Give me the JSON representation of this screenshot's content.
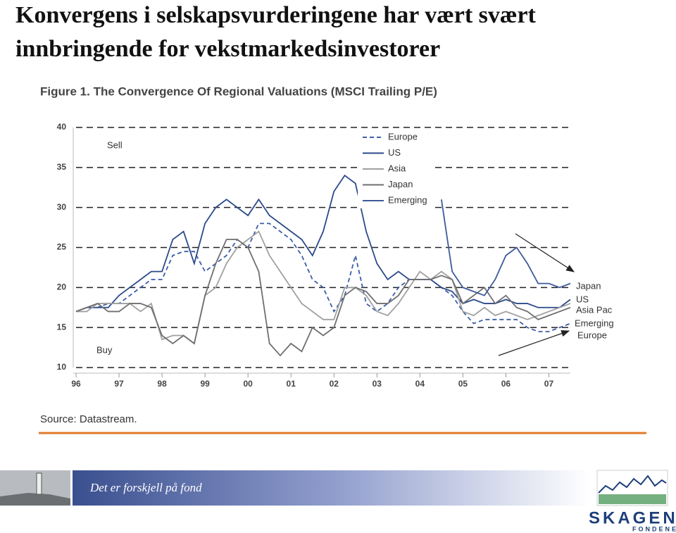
{
  "slide_title": [
    "Konvergens i selskapsvurderingene har vært svært",
    "innbringende for vekstmarkedsinvestorer"
  ],
  "chart_data": {
    "type": "line",
    "title": "Figure 1. The Convergence Of Regional Valuations (MSCI Trailing P/E)",
    "source": "Source: Datastream.",
    "x": [
      1996,
      1996.25,
      1996.5,
      1996.75,
      1997,
      1997.25,
      1997.5,
      1997.75,
      1998,
      1998.25,
      1998.5,
      1998.75,
      1999,
      1999.25,
      1999.5,
      1999.75,
      2000,
      2000.25,
      2000.5,
      2000.75,
      2001,
      2001.25,
      2001.5,
      2001.75,
      2002,
      2002.25,
      2002.5,
      2002.75,
      2003,
      2003.25,
      2003.5,
      2003.75,
      2004,
      2004.25,
      2004.5,
      2004.75,
      2005,
      2005.25,
      2005.5,
      2005.75,
      2006,
      2006.25,
      2006.5,
      2006.75,
      2007,
      2007.25,
      2007.5
    ],
    "series": [
      {
        "name": "Europe",
        "color": "#3b5ea8",
        "dashed": true,
        "values": [
          17,
          17.5,
          17.5,
          18,
          18,
          19,
          20,
          21,
          21,
          24,
          24.5,
          24.5,
          22,
          23,
          24,
          26,
          25,
          28,
          28,
          27,
          26,
          24,
          21,
          20,
          17,
          19,
          24,
          18,
          17,
          18,
          20,
          21,
          21,
          21,
          20,
          19,
          17,
          15.5,
          16,
          16,
          16,
          16,
          15,
          14.5,
          14.5,
          15,
          15.5
        ]
      },
      {
        "name": "US",
        "color": "#2b4a8a",
        "values": [
          17,
          17.5,
          17.5,
          17.5,
          19,
          20,
          21,
          22,
          22,
          26,
          27,
          23,
          28,
          30,
          31,
          30,
          29,
          31,
          29,
          28,
          27,
          26,
          24,
          27,
          32,
          34,
          33,
          27,
          23,
          21,
          22,
          21,
          21,
          21,
          20,
          19.5,
          18,
          18.5,
          18,
          18,
          18.5,
          18,
          18,
          17.5,
          17.5,
          17.5,
          18.5
        ]
      },
      {
        "name": "Asia",
        "color": "#a0a0a0",
        "values": [
          17,
          17,
          18,
          18,
          18,
          18,
          17,
          18,
          13.5,
          14,
          14,
          13,
          19,
          20,
          23,
          25,
          26,
          27,
          24,
          22,
          20,
          18,
          17,
          16,
          16,
          20,
          20,
          19,
          17,
          16.5,
          18,
          20,
          22,
          21,
          22,
          21,
          17,
          16.5,
          17.5,
          16.5,
          17,
          16.5,
          16,
          16.5,
          17,
          17.5,
          18
        ]
      },
      {
        "name": "Japan",
        "color": "#6f6f6f",
        "values": [
          17,
          17.5,
          18,
          17,
          17,
          18,
          18,
          17.5,
          14,
          13,
          14,
          13,
          19,
          23,
          26,
          26,
          25,
          22,
          13,
          11.5,
          13,
          12,
          15,
          14,
          15,
          19,
          20,
          19.5,
          18,
          18,
          19,
          21,
          21,
          21,
          21.5,
          21,
          18,
          19,
          20,
          18,
          19,
          17.5,
          17,
          16,
          16.5,
          17,
          17.5
        ]
      },
      {
        "name": "Emerging",
        "color": "#3d5a99",
        "values": [
          null,
          null,
          null,
          null,
          null,
          null,
          null,
          null,
          null,
          null,
          null,
          null,
          null,
          null,
          null,
          null,
          null,
          null,
          null,
          null,
          null,
          null,
          null,
          null,
          null,
          null,
          null,
          null,
          null,
          null,
          null,
          null,
          null,
          null,
          31,
          22,
          20,
          19.5,
          19,
          21,
          24,
          25,
          23,
          20.5,
          20.5,
          20,
          20.5
        ]
      }
    ],
    "xlim": [
      1996,
      2007.5
    ],
    "xticks": [
      {
        "value": 1996,
        "label": "96"
      },
      {
        "value": 1997,
        "label": "97"
      },
      {
        "value": 1998,
        "label": "98"
      },
      {
        "value": 1999,
        "label": "99"
      },
      {
        "value": 2000,
        "label": "00"
      },
      {
        "value": 2001,
        "label": "01"
      },
      {
        "value": 2002,
        "label": "02"
      },
      {
        "value": 2003,
        "label": "03"
      },
      {
        "value": 2004,
        "label": "04"
      },
      {
        "value": 2005,
        "label": "05"
      },
      {
        "value": 2006,
        "label": "06"
      },
      {
        "value": 2007,
        "label": "07"
      }
    ],
    "ylim": [
      10,
      40
    ],
    "yticks": [
      10,
      15,
      20,
      25,
      30,
      35,
      40
    ],
    "grid": true,
    "annotations": [
      "Sell",
      "Buy",
      "Japan",
      "US",
      "Asia Pac",
      "Emerging",
      "Europe"
    ]
  },
  "footer": {
    "tagline": "Det er forskjell på fond",
    "logo": "SKAGEN",
    "logo_sub": "FONDENE"
  }
}
